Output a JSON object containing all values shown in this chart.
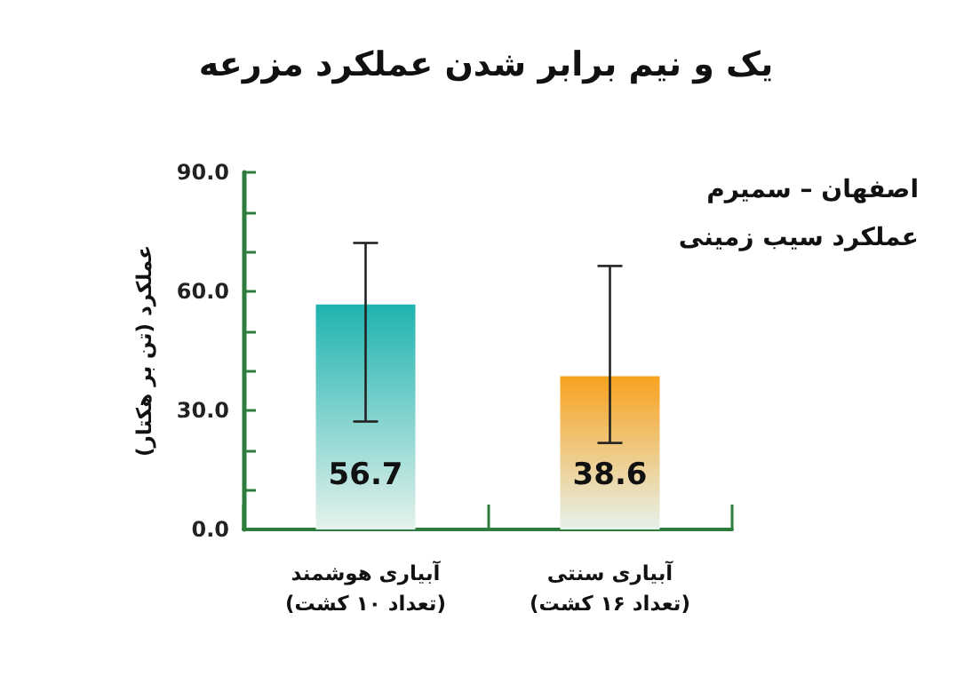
{
  "chart_data": {
    "type": "bar",
    "title": "یک و نیم برابر شدن عملکرد مزرعه",
    "ylabel": "عملکرد (تن بر هکتار)",
    "annotations": [
      "اصفهان – سمیرم",
      "عملکرد سیب زمینی"
    ],
    "categories": [
      "آبیاری هوشمند\n(تعداد ۱۰ کشت)",
      "آبیاری سنتی\n(تعداد ۱۶ کشت)"
    ],
    "values": [
      56.7,
      38.6
    ],
    "colors": [
      "#1fb3b0",
      "#f7a21e"
    ],
    "errors": [
      [
        27.2,
        72.2
      ],
      [
        21.8,
        66.4
      ]
    ],
    "ylim": [
      0,
      90
    ],
    "yticks": [
      {
        "value": 0,
        "label": "0.0"
      },
      {
        "value": 10,
        "label": null
      },
      {
        "value": 20,
        "label": null
      },
      {
        "value": 30,
        "label": "30.0"
      },
      {
        "value": 40,
        "label": null
      },
      {
        "value": 50,
        "label": null
      },
      {
        "value": 60,
        "label": "60.0"
      },
      {
        "value": 70,
        "label": null
      },
      {
        "value": 80,
        "label": null
      },
      {
        "value": 90,
        "label": "90.0"
      }
    ],
    "data_labels": true,
    "grid": false
  }
}
